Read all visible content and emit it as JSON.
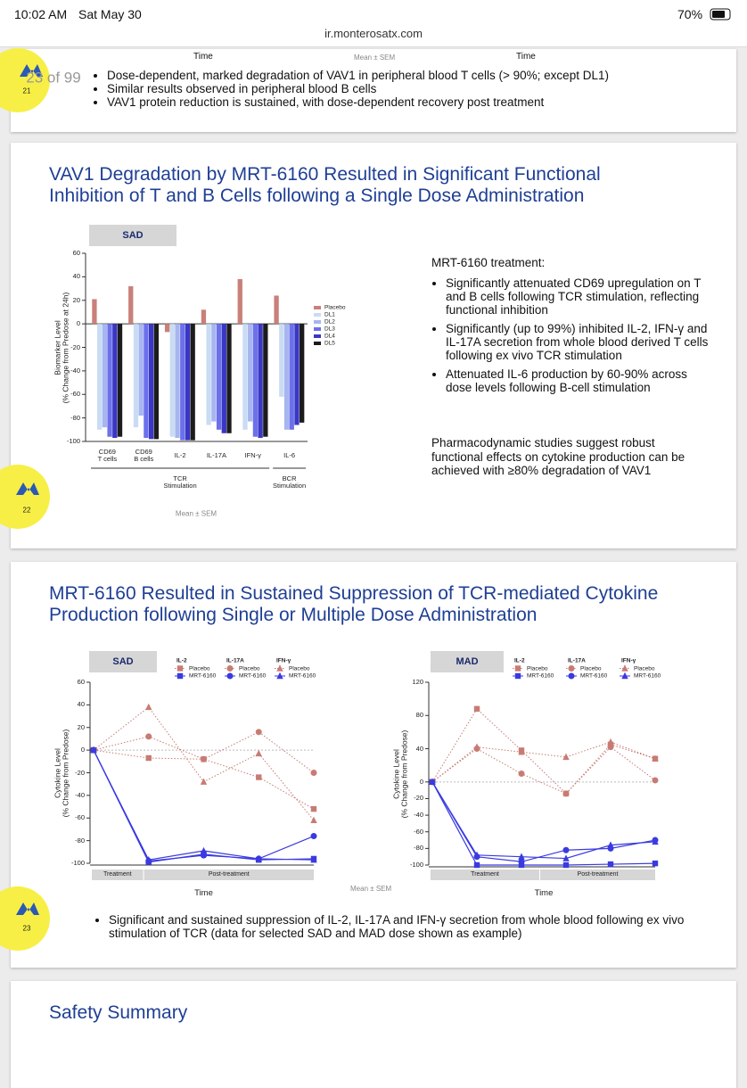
{
  "status_bar": {
    "time": "10:02 AM",
    "date": "Sat May 30",
    "battery": "70%"
  },
  "url": "ir.monterosatx.com",
  "page_indicator": "23 of 99",
  "slides": [
    {
      "number": "21",
      "axis_labels": [
        "Time",
        "Time"
      ],
      "note": "Mean ± SEM",
      "bullets": [
        "Dose-dependent, marked degradation of VAV1 in peripheral blood T cells (> 90%; except DL1)",
        "Similar results observed in peripheral blood B cells",
        "VAV1 protein reduction is sustained, with dose-dependent recovery post treatment"
      ]
    },
    {
      "number": "22",
      "title": "VAV1 Degradation by MRT-6160 Resulted in Significant Functional\nInhibition of T and B Cells following a Single Dose Administration",
      "text_heading": "MRT-6160 treatment:",
      "bullets": [
        "Significantly attenuated CD69 upregulation on T and B cells following TCR stimulation, reflecting functional inhibition",
        "Significantly (up to 99%) inhibited IL-2, IFN-γ and IL-17A secretion from whole blood derived T cells following ex vivo TCR stimulation",
        "Attenuated IL-6 production by 60-90% across dose levels following B-cell stimulation"
      ],
      "conclusion": "Pharmacodynamic studies suggest robust functional effects on cytokine production can be achieved with ≥80% degradation of VAV1"
    },
    {
      "number": "23",
      "title": "MRT-6160 Resulted in Sustained Suppression of TCR-mediated Cytokine\nProduction following Single or Multiple Dose Administration",
      "note": "Mean ± SEM",
      "bullet": "Significant and sustained suppression of IL-2, IL-17A and IFN-γ secretion from whole blood following ex vivo stimulation of TCR (data for selected SAD and MAD dose shown as example)"
    },
    {
      "title": "Safety Summary"
    }
  ],
  "chart_data": [
    {
      "type": "bar",
      "header": "SAD",
      "ylabel": "Biomarker Level\n(% Change from Predose at 24h)",
      "note": "Mean ± SEM",
      "categories": [
        "CD69\nT cells",
        "CD69\nB cells",
        "IL-2",
        "IL-17A",
        "IFN-γ",
        "IL-6"
      ],
      "x_groups": [
        {
          "label": "TCR\nStimulation",
          "span": 5
        },
        {
          "label": "BCR\nStimulation",
          "span": 1
        }
      ],
      "series": [
        {
          "name": "Placebo",
          "color": "#c9807a",
          "values": [
            21,
            32,
            -7,
            12,
            38,
            24
          ]
        },
        {
          "name": "DL1",
          "color": "#c9dcf3",
          "values": [
            -90,
            -88,
            -96,
            -86,
            -90,
            -62
          ]
        },
        {
          "name": "DL2",
          "color": "#a7b6f0",
          "values": [
            -88,
            -78,
            -97,
            -83,
            -83,
            -90
          ]
        },
        {
          "name": "DL3",
          "color": "#6c70ea",
          "values": [
            -96,
            -97,
            -99,
            -90,
            -96,
            -90
          ]
        },
        {
          "name": "DL4",
          "color": "#3a37c4",
          "values": [
            -97,
            -98,
            -99,
            -93,
            -97,
            -86
          ]
        },
        {
          "name": "DL5",
          "color": "#1c1c1c",
          "values": [
            -96,
            -98,
            -99,
            -93,
            -96,
            -84
          ]
        }
      ],
      "ylim": [
        -100,
        60
      ],
      "yticks": [
        -100,
        -80,
        -60,
        -40,
        -20,
        0,
        20,
        40,
        60
      ],
      "legend": "right"
    },
    {
      "type": "line",
      "header": "SAD",
      "xlabel": "Time",
      "ylabel": "Cytokine Level\n(% Change from Predose)",
      "categories": [
        null,
        null,
        null,
        null,
        null
      ],
      "phases": [
        {
          "label": "Treatment",
          "span": 0.9
        },
        {
          "label": "Post-treatment",
          "span": 3.1
        }
      ],
      "series": [
        {
          "group": "IL-2",
          "name": "Placebo",
          "color": "#c87b73",
          "marker": "square",
          "dashed": true,
          "values": [
            0,
            -7,
            -8,
            -24,
            -52
          ]
        },
        {
          "group": "IL-2",
          "name": "MRT-6160",
          "color": "#3a3ae0",
          "marker": "square",
          "dashed": false,
          "values": [
            0,
            -99,
            -92,
            -97,
            -96
          ]
        },
        {
          "group": "IL-17A",
          "name": "Placebo",
          "color": "#c87b73",
          "marker": "circle",
          "dashed": true,
          "values": [
            0,
            12,
            -8,
            16,
            -20
          ]
        },
        {
          "group": "IL-17A",
          "name": "MRT-6160",
          "color": "#3a3ae0",
          "marker": "circle",
          "dashed": false,
          "values": [
            0,
            -98,
            -93,
            -96,
            -76
          ]
        },
        {
          "group": "IFN-γ",
          "name": "Placebo",
          "color": "#c87b73",
          "marker": "triangle",
          "dashed": true,
          "values": [
            0,
            38,
            -28,
            -3,
            -62
          ]
        },
        {
          "group": "IFN-γ",
          "name": "MRT-6160",
          "color": "#3a3ae0",
          "marker": "triangle",
          "dashed": false,
          "values": [
            0,
            -97,
            -89,
            -96,
            -97
          ]
        }
      ],
      "ylim": [
        -100,
        60
      ],
      "yticks": [
        -100,
        -80,
        -60,
        -40,
        -20,
        0,
        20,
        40,
        60
      ],
      "legend": "top"
    },
    {
      "type": "line",
      "header": "MAD",
      "xlabel": "Time",
      "ylabel": "Cytokine Level\n(% Change from Predose)",
      "categories": [
        null,
        null,
        null,
        null,
        null,
        null
      ],
      "phases": [
        {
          "label": "Treatment",
          "span": 2.4
        },
        {
          "label": "Post-treatment",
          "span": 2.6
        }
      ],
      "series": [
        {
          "group": "IL-2",
          "name": "Placebo",
          "color": "#c87b73",
          "marker": "square",
          "dashed": true,
          "values": [
            0,
            88,
            38,
            -14,
            45,
            28
          ]
        },
        {
          "group": "IL-2",
          "name": "MRT-6160",
          "color": "#3a3ae0",
          "marker": "square",
          "dashed": false,
          "values": [
            0,
            -100,
            -100,
            -100,
            -99,
            -98
          ]
        },
        {
          "group": "IL-17A",
          "name": "Placebo",
          "color": "#c87b73",
          "marker": "circle",
          "dashed": true,
          "values": [
            0,
            40,
            10,
            -14,
            42,
            2
          ]
        },
        {
          "group": "IL-17A",
          "name": "MRT-6160",
          "color": "#3a3ae0",
          "marker": "circle",
          "dashed": false,
          "values": [
            0,
            -90,
            -96,
            -82,
            -80,
            -70
          ]
        },
        {
          "group": "IFN-γ",
          "name": "Placebo",
          "color": "#c87b73",
          "marker": "triangle",
          "dashed": true,
          "values": [
            0,
            42,
            36,
            30,
            48,
            28
          ]
        },
        {
          "group": "IFN-γ",
          "name": "MRT-6160",
          "color": "#3a3ae0",
          "marker": "triangle",
          "dashed": false,
          "values": [
            0,
            -88,
            -90,
            -92,
            -76,
            -72
          ]
        }
      ],
      "ylim": [
        -100,
        120
      ],
      "yticks": [
        -100,
        -80,
        -60,
        -40,
        -20,
        0,
        40,
        80,
        120
      ],
      "legend": "top"
    }
  ]
}
